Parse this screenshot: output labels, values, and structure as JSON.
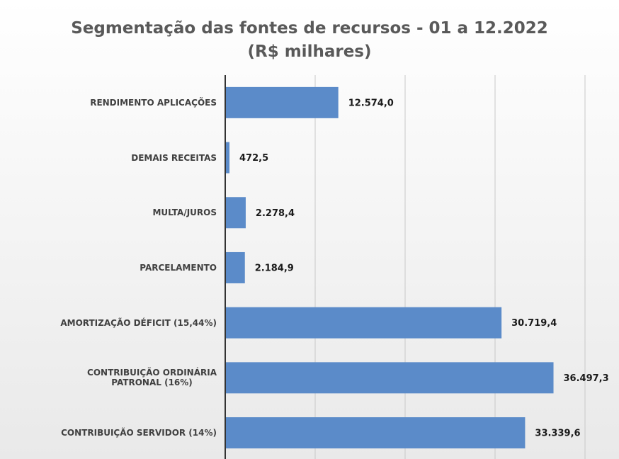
{
  "chart_data": {
    "type": "bar",
    "orientation": "horizontal",
    "title": "Segmentação das fontes de recursos - 01 a 12.2022",
    "subtitle": "(R$ milhares)",
    "categories": [
      "RENDIMENTO APLICAÇÕES",
      "DEMAIS RECEITAS",
      "MULTA/JUROS",
      "PARCELAMENTO",
      "AMORTIZAÇÃO DÉFICIT  (15,44%)",
      "CONTRIBUIÇÃO ORDINÁRIA\nPATRONAL (16%)",
      "CONTRIBUIÇÃO SERVIDOR (14%)"
    ],
    "values": [
      12574.0,
      472.5,
      2278.4,
      2184.9,
      30719.4,
      36497.3,
      33339.6
    ],
    "value_labels": [
      "12.574,0",
      "472,5",
      "2.278,4",
      "2.184,9",
      "30.719,4",
      "36.497,3",
      "33.339,6"
    ],
    "color": "#5b8bc9",
    "xlim": [
      0,
      40000
    ],
    "xticks": [
      0,
      10000,
      20000,
      30000,
      40000
    ],
    "grid": true
  }
}
